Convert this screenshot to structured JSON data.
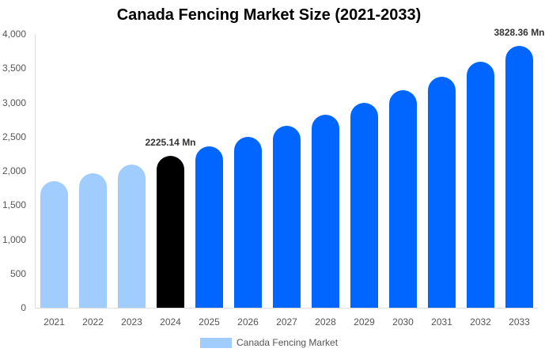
{
  "chart_data": {
    "type": "bar",
    "title": "Canada Fencing Market Size (2021-2033)",
    "xlabel": "",
    "ylabel": "",
    "ylim": [
      0,
      4000
    ],
    "yticks": [
      0,
      500,
      1000,
      1500,
      2000,
      2500,
      3000,
      3500,
      4000
    ],
    "ytick_labels": [
      "0",
      "500",
      "1,000",
      "1,500",
      "2,000",
      "2,500",
      "3,000",
      "3,500",
      "4,000"
    ],
    "grid": false,
    "legend_position": "bottom",
    "categories": [
      "2021",
      "2022",
      "2023",
      "2024",
      "2025",
      "2026",
      "2027",
      "2028",
      "2029",
      "2030",
      "2031",
      "2032",
      "2033"
    ],
    "series": [
      {
        "name": "Canada Fencing Market",
        "values": [
          1850,
          1965,
          2090,
          2225.14,
          2360,
          2500,
          2660,
          2820,
          3000,
          3180,
          3375,
          3595,
          3828.36
        ]
      }
    ],
    "bar_colors": [
      "#a0cdfd",
      "#a0cdfd",
      "#a0cdfd",
      "#000000",
      "#0066ff",
      "#0066ff",
      "#0066ff",
      "#0066ff",
      "#0066ff",
      "#0066ff",
      "#0066ff",
      "#0066ff",
      "#0066ff"
    ],
    "annotations": [
      {
        "category": "2024",
        "text": "2225.14 Mn"
      },
      {
        "category": "2033",
        "text": "3828.36 Mn"
      }
    ]
  },
  "legend": {
    "label": "Canada Fencing Market",
    "color": "#a0cdfd"
  }
}
